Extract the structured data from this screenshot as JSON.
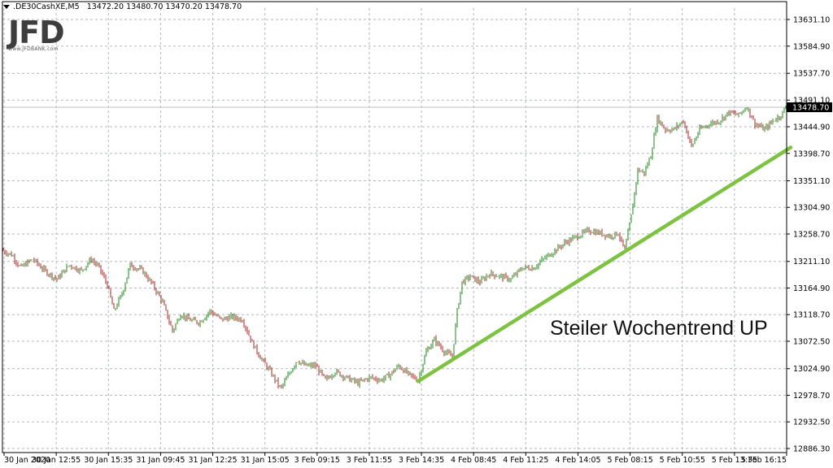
{
  "header": {
    "symbol": ".DE30CashXE,M5",
    "open": "13472.20",
    "high": "13480.70",
    "low": "13470.20",
    "close": "13478.70"
  },
  "logo": {
    "text": "JFD",
    "url": "www.JFDBANK.com"
  },
  "annotation": {
    "text": "Steiler Wochentrend UP"
  },
  "current_price_label": "13478.70",
  "colors": {
    "up_candle": "#1a8a1a",
    "down_candle": "#b02020",
    "trendline": "#7dc241",
    "grid": "#b0b8c0",
    "price_box": "#000000"
  },
  "chart_data": {
    "type": "candlestick",
    "symbol": ".DE30CashXE,M5",
    "y_ticks": [
      "13631.10",
      "13584.90",
      "13537.70",
      "13491.10",
      "13444.90",
      "13398.70",
      "13351.10",
      "13304.90",
      "13258.70",
      "13211.10",
      "13164.90",
      "13118.70",
      "13072.50",
      "13024.90",
      "12978.70",
      "12932.50",
      "12886.30"
    ],
    "ylim": [
      12886.3,
      13648
    ],
    "x_ticks": [
      "30 Jan 2020",
      "30 Jan 12:55",
      "30 Jan 15:35",
      "31 Jan 09:45",
      "31 Jan 12:25",
      "31 Jan 15:05",
      "3 Feb 09:15",
      "3 Feb 11:55",
      "3 Feb 14:35",
      "4 Feb 08:45",
      "4 Feb 11:25",
      "4 Feb 14:05",
      "5 Feb 08:15",
      "5 Feb 10:55",
      "5 Feb 13:35",
      "5 Feb 16:15"
    ],
    "current_price": 13478.7,
    "price_path": [
      [
        0,
        13232
      ],
      [
        15,
        13222
      ],
      [
        25,
        13200
      ],
      [
        40,
        13215
      ],
      [
        55,
        13195
      ],
      [
        70,
        13180
      ],
      [
        85,
        13205
      ],
      [
        100,
        13195
      ],
      [
        112,
        13215
      ],
      [
        122,
        13200
      ],
      [
        132,
        13170
      ],
      [
        140,
        13125
      ],
      [
        150,
        13155
      ],
      [
        160,
        13205
      ],
      [
        175,
        13195
      ],
      [
        188,
        13170
      ],
      [
        200,
        13140
      ],
      [
        212,
        13090
      ],
      [
        222,
        13120
      ],
      [
        232,
        13110
      ],
      [
        245,
        13105
      ],
      [
        258,
        13125
      ],
      [
        272,
        13110
      ],
      [
        285,
        13115
      ],
      [
        298,
        13110
      ],
      [
        310,
        13070
      ],
      [
        320,
        13045
      ],
      [
        332,
        13020
      ],
      [
        345,
        12990
      ],
      [
        355,
        13015
      ],
      [
        365,
        13040
      ],
      [
        375,
        13030
      ],
      [
        388,
        13030
      ],
      [
        400,
        13005
      ],
      [
        412,
        13020
      ],
      [
        425,
        13010
      ],
      [
        440,
        13000
      ],
      [
        455,
        13010
      ],
      [
        468,
        13005
      ],
      [
        480,
        13015
      ],
      [
        490,
        13030
      ],
      [
        502,
        13015
      ],
      [
        514,
        13005
      ],
      [
        524,
        13055
      ],
      [
        534,
        13075
      ],
      [
        546,
        13055
      ],
      [
        556,
        13045
      ],
      [
        562,
        13125
      ],
      [
        568,
        13175
      ],
      [
        578,
        13185
      ],
      [
        590,
        13175
      ],
      [
        602,
        13190
      ],
      [
        615,
        13185
      ],
      [
        628,
        13180
      ],
      [
        642,
        13200
      ],
      [
        656,
        13200
      ],
      [
        668,
        13215
      ],
      [
        682,
        13230
      ],
      [
        696,
        13245
      ],
      [
        710,
        13255
      ],
      [
        724,
        13265
      ],
      [
        738,
        13260
      ],
      [
        750,
        13255
      ],
      [
        760,
        13260
      ],
      [
        768,
        13230
      ],
      [
        776,
        13290
      ],
      [
        784,
        13370
      ],
      [
        792,
        13365
      ],
      [
        800,
        13395
      ],
      [
        808,
        13460
      ],
      [
        818,
        13440
      ],
      [
        828,
        13440
      ],
      [
        840,
        13455
      ],
      [
        850,
        13410
      ],
      [
        860,
        13440
      ],
      [
        872,
        13450
      ],
      [
        884,
        13455
      ],
      [
        896,
        13470
      ],
      [
        908,
        13465
      ],
      [
        918,
        13480
      ],
      [
        928,
        13450
      ],
      [
        940,
        13440
      ],
      [
        950,
        13455
      ],
      [
        960,
        13465
      ],
      [
        966,
        13478.7
      ]
    ],
    "trendline": {
      "start": {
        "x_index": 514,
        "price": 13003
      },
      "end": {
        "x_index": 972,
        "price": 13409
      }
    },
    "annotations": [
      "Steiler Wochentrend UP"
    ],
    "grid": true
  }
}
